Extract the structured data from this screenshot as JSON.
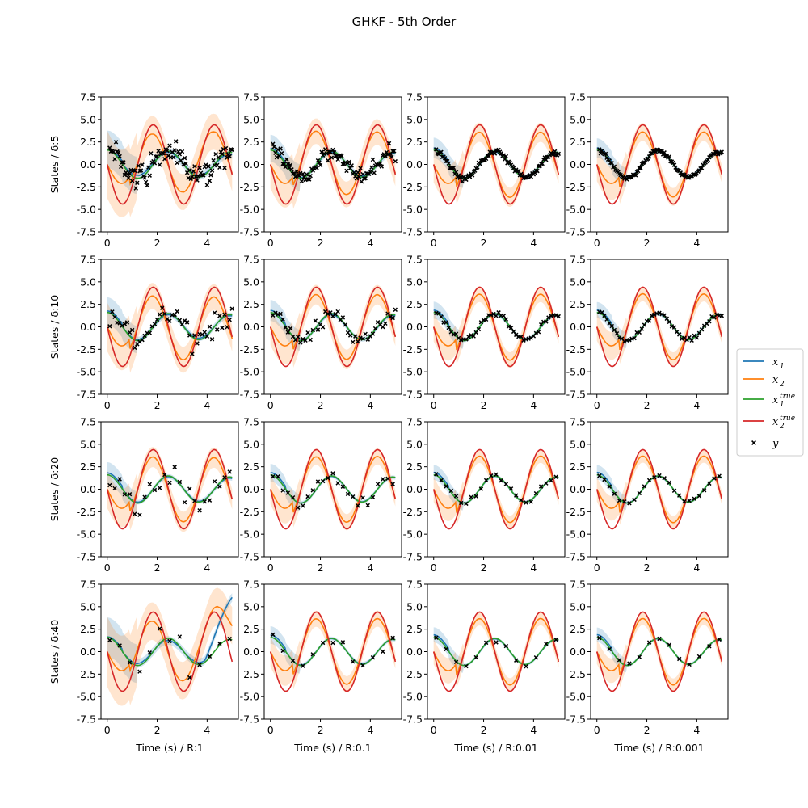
{
  "chart_data": {
    "type": "line",
    "title": "GHKF - 5th Order",
    "rows": [
      "5",
      "10",
      "20",
      "40"
    ],
    "row_label_prefix": "States / δ:",
    "cols": [
      "1",
      "0.1",
      "0.01",
      "0.001"
    ],
    "col_label_prefix": "Time (s) / R:",
    "xlim": [
      -0.25,
      5.25
    ],
    "ylim": [
      -7.5,
      7.5
    ],
    "xticks": [
      0,
      2,
      4
    ],
    "yticks": [
      -7.5,
      -5.0,
      -2.5,
      0.0,
      2.5,
      5.0,
      7.5
    ],
    "grid": false,
    "legend_placement": "right",
    "series": [
      {
        "name": "x",
        "sub": "1",
        "sup": "",
        "kind": "line",
        "color": "#1f77b4"
      },
      {
        "name": "x",
        "sub": "2",
        "sup": "",
        "kind": "line",
        "color": "#ff7f0e"
      },
      {
        "name": "x",
        "sub": "1",
        "sup": "true",
        "kind": "line",
        "color": "#2ca02c"
      },
      {
        "name": "x",
        "sub": "2",
        "sup": "true",
        "kind": "line",
        "color": "#d62728"
      },
      {
        "name": "y",
        "sub": "",
        "sup": "",
        "kind": "marker",
        "color": "#000000"
      }
    ]
  }
}
